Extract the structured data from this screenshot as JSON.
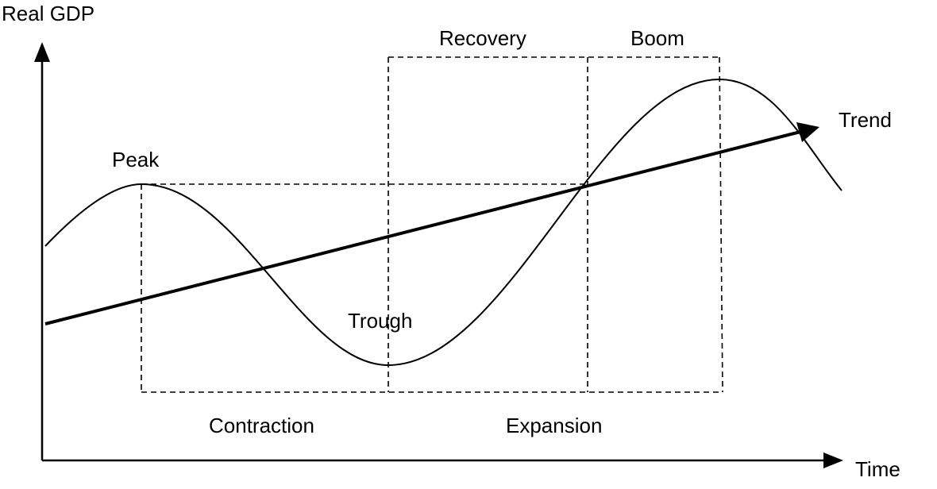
{
  "diagram": {
    "y_axis_label": "Real GDP",
    "x_axis_label": "Time",
    "trend_label": "Trend",
    "peak_label": "Peak",
    "trough_label": "Trough",
    "recovery_label": "Recovery",
    "boom_label": "Boom",
    "contraction_label": "Contraction",
    "expansion_label": "Expansion"
  }
}
